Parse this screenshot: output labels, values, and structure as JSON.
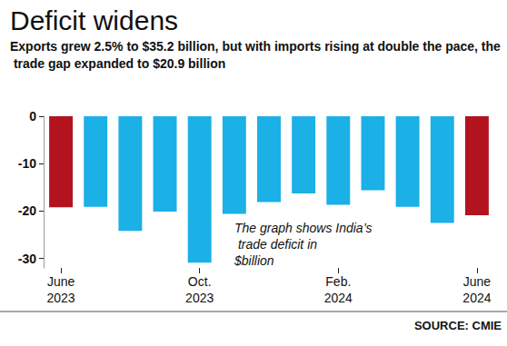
{
  "chart_data": {
    "type": "bar",
    "title": "Deficit widens",
    "subtitle": "Exports grew 2.5% to $35.2 billion, but with imports rising at double the pace, the trade gap expanded to $20.9 billion",
    "annotation": "The graph shows India’s trade deficit in $billion",
    "source": "SOURCE: CMIE",
    "categories": [
      "June\n2023",
      null,
      null,
      null,
      "Oct.\n2023",
      null,
      null,
      null,
      "Feb.\n2024",
      null,
      null,
      null,
      "June\n2024"
    ],
    "values": [
      -19.2,
      -19.1,
      -24.2,
      -20.1,
      -30.9,
      -20.6,
      -18.1,
      -16.3,
      -18.7,
      -15.6,
      -19.1,
      -22.5,
      -20.9
    ],
    "colors": [
      "#b3121f",
      "#1bb0e6",
      "#1bb0e6",
      "#1bb0e6",
      "#1bb0e6",
      "#1bb0e6",
      "#1bb0e6",
      "#1bb0e6",
      "#1bb0e6",
      "#1bb0e6",
      "#1bb0e6",
      "#1bb0e6",
      "#b3121f"
    ],
    "ylim": [
      -32,
      0
    ],
    "yticks": [
      -30,
      -20,
      -10,
      0
    ],
    "grid": false
  }
}
